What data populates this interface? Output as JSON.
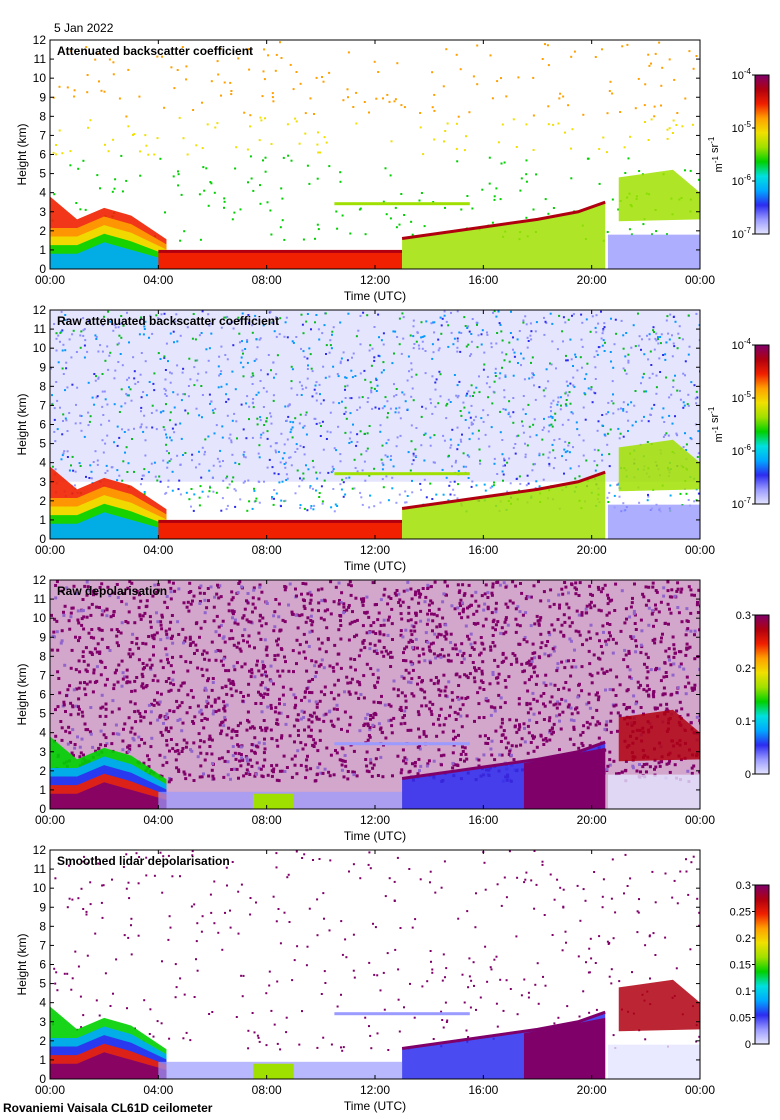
{
  "figure": {
    "date": "5 Jan 2022",
    "footer": "Rovaniemi Vaisala CL61D ceilometer"
  },
  "colors": {
    "colormap": [
      "#e4e4ff",
      "#9a9aff",
      "#2c2cf0",
      "#00a8ff",
      "#00e0e0",
      "#00d000",
      "#a0e000",
      "#f0e000",
      "#ffa000",
      "#f02000",
      "#b00010",
      "#80006a"
    ]
  },
  "chart_data": [
    {
      "type": "heatmap",
      "title": "Attenuated backscatter coefficient",
      "xlabel": "Time (UTC)",
      "ylabel": "Height (km)",
      "xticks": [
        "00:00",
        "04:00",
        "08:00",
        "12:00",
        "16:00",
        "20:00",
        "00:00"
      ],
      "yticks": [
        "0",
        "1",
        "2",
        "3",
        "4",
        "5",
        "6",
        "7",
        "8",
        "9",
        "10",
        "11",
        "12"
      ],
      "xlim": [
        0,
        24
      ],
      "ylim": [
        0,
        12
      ],
      "colorbar": {
        "scale": "log",
        "ticks": [
          "10-4",
          "10-5",
          "10-6",
          "10-7"
        ],
        "label": "m-1 sr-1",
        "range": [
          1e-07,
          0.0001
        ]
      },
      "grid": false
    },
    {
      "type": "heatmap",
      "title": "Raw attenuated backscatter coefficient",
      "xlabel": "Time (UTC)",
      "ylabel": "Height (km)",
      "xticks": [
        "00:00",
        "04:00",
        "08:00",
        "12:00",
        "16:00",
        "20:00",
        "00:00"
      ],
      "yticks": [
        "0",
        "1",
        "2",
        "3",
        "4",
        "5",
        "6",
        "7",
        "8",
        "9",
        "10",
        "11",
        "12"
      ],
      "xlim": [
        0,
        24
      ],
      "ylim": [
        0,
        12
      ],
      "colorbar": {
        "scale": "log",
        "ticks": [
          "10-4",
          "10-5",
          "10-6",
          "10-7"
        ],
        "label": "m-1 sr-1",
        "range": [
          1e-07,
          0.0001
        ]
      },
      "grid": false
    },
    {
      "type": "heatmap",
      "title": "Raw depolarisation",
      "xlabel": "Time (UTC)",
      "ylabel": "Height (km)",
      "xticks": [
        "00:00",
        "04:00",
        "08:00",
        "12:00",
        "16:00",
        "20:00",
        "00:00"
      ],
      "yticks": [
        "0",
        "1",
        "2",
        "3",
        "4",
        "5",
        "6",
        "7",
        "8",
        "9",
        "10",
        "11",
        "12"
      ],
      "xlim": [
        0,
        24
      ],
      "ylim": [
        0,
        12
      ],
      "colorbar": {
        "scale": "linear",
        "ticks": [
          "0.3",
          "0.2",
          "0.1",
          "0"
        ],
        "label": "",
        "range": [
          0,
          0.3
        ]
      },
      "grid": false
    },
    {
      "type": "heatmap",
      "title": "Smoothed lidar depolarisation",
      "xlabel": "Time (UTC)",
      "ylabel": "Height (km)",
      "xticks": [
        "00:00",
        "04:00",
        "08:00",
        "12:00",
        "16:00",
        "20:00",
        "00:00"
      ],
      "yticks": [
        "0",
        "1",
        "2",
        "3",
        "4",
        "5",
        "6",
        "7",
        "8",
        "9",
        "10",
        "11",
        "12"
      ],
      "xlim": [
        0,
        24
      ],
      "ylim": [
        0,
        12
      ],
      "colorbar": {
        "scale": "linear",
        "ticks": [
          "0.3",
          "0.25",
          "0.2",
          "0.15",
          "0.1",
          "0.05",
          "0"
        ],
        "label": "",
        "range": [
          0,
          0.3
        ]
      },
      "grid": false
    }
  ]
}
